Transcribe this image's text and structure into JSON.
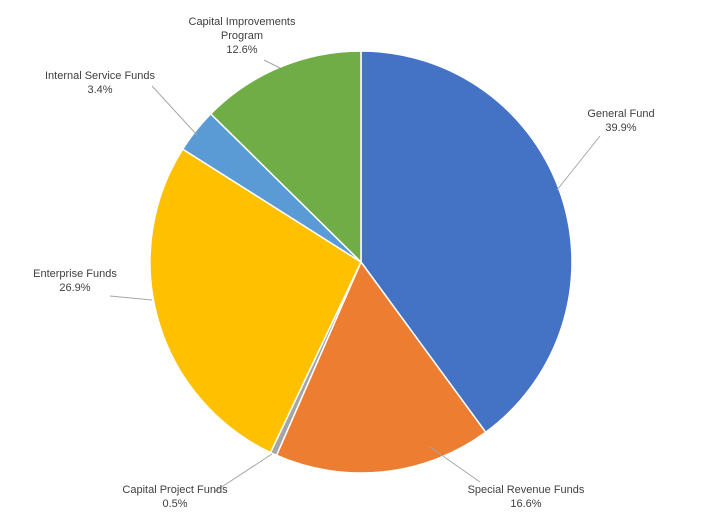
{
  "chart_data": {
    "type": "pie",
    "start_angle_deg": 0,
    "direction": "clockwise",
    "slices": [
      {
        "name": "General Fund",
        "label_lines": [
          "General Fund"
        ],
        "pct_text": "39.9%",
        "value": 39.9,
        "color": "#4472c4"
      },
      {
        "name": "Special Revenue Funds",
        "label_lines": [
          "Special Revenue Funds"
        ],
        "pct_text": "16.6%",
        "value": 16.6,
        "color": "#ed7d31"
      },
      {
        "name": "Capital Project Funds",
        "label_lines": [
          "Capital Project Funds"
        ],
        "pct_text": "0.5%",
        "value": 0.5,
        "color": "#a5a5a5"
      },
      {
        "name": "Enterprise Funds",
        "label_lines": [
          "Enterprise Funds"
        ],
        "pct_text": "26.9%",
        "value": 26.9,
        "color": "#ffc000"
      },
      {
        "name": "Internal Service Funds",
        "label_lines": [
          "Internal Service Funds"
        ],
        "pct_text": "3.4%",
        "value": 3.4,
        "color": "#5b9bd5"
      },
      {
        "name": "Capital Improvements Program",
        "label_lines": [
          "Capital Improvements",
          "Program"
        ],
        "pct_text": "12.6%",
        "value": 12.6,
        "color": "#70ad47"
      }
    ]
  }
}
